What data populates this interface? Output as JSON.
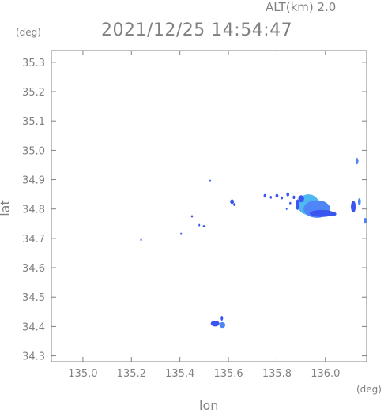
{
  "header": {
    "altitude_label": "ALT(km) 2.0",
    "timestamp": "2021/12/25 14:54:47"
  },
  "chart_data": {
    "type": "heatmap",
    "title": "2021/12/25 14:54:47",
    "xlabel": "lon",
    "ylabel": "lat",
    "x_unit": "(deg)",
    "y_unit": "(deg)",
    "xlim": [
      134.87,
      136.17
    ],
    "ylim": [
      34.28,
      35.34
    ],
    "x_ticks": [
      {
        "value": 135.0,
        "label": "135.0"
      },
      {
        "value": 135.2,
        "label": "135.2"
      },
      {
        "value": 135.4,
        "label": "135.4"
      },
      {
        "value": 135.6,
        "label": "135.6"
      },
      {
        "value": 135.8,
        "label": "135.8"
      },
      {
        "value": 136.0,
        "label": "136.0"
      }
    ],
    "y_ticks": [
      {
        "value": 34.3,
        "label": "34.3"
      },
      {
        "value": 34.4,
        "label": "34.4"
      },
      {
        "value": 34.5,
        "label": "34.5"
      },
      {
        "value": 34.6,
        "label": "34.6"
      },
      {
        "value": 34.7,
        "label": "34.7"
      },
      {
        "value": 34.8,
        "label": "34.8"
      },
      {
        "value": 34.9,
        "label": "34.9"
      },
      {
        "value": 35.0,
        "label": "35.0"
      },
      {
        "value": 35.1,
        "label": "35.1"
      },
      {
        "value": 35.2,
        "label": "35.2"
      },
      {
        "value": 35.3,
        "label": "35.3"
      }
    ],
    "grid": false,
    "colors": {
      "axis": "#808080",
      "echo_low": "#3a55f0",
      "echo_mid": "#4f86f7",
      "echo_high": "#4fb8f0"
    },
    "echo_cells": [
      {
        "lon": 135.93,
        "lat": 34.815,
        "rx": 0.045,
        "ry": 0.035,
        "level": "high"
      },
      {
        "lon": 135.965,
        "lat": 34.8,
        "rx": 0.055,
        "ry": 0.03,
        "level": "mid"
      },
      {
        "lon": 135.985,
        "lat": 34.785,
        "rx": 0.05,
        "ry": 0.012,
        "level": "low"
      },
      {
        "lon": 136.03,
        "lat": 34.783,
        "rx": 0.015,
        "ry": 0.008,
        "level": "low"
      },
      {
        "lon": 135.9,
        "lat": 34.835,
        "rx": 0.012,
        "ry": 0.012,
        "level": "low"
      },
      {
        "lon": 135.885,
        "lat": 34.815,
        "rx": 0.008,
        "ry": 0.018,
        "level": "low"
      },
      {
        "lon": 136.115,
        "lat": 34.808,
        "rx": 0.01,
        "ry": 0.02,
        "level": "low"
      },
      {
        "lon": 136.14,
        "lat": 34.825,
        "rx": 0.006,
        "ry": 0.012,
        "level": "mid"
      },
      {
        "lon": 136.13,
        "lat": 34.963,
        "rx": 0.006,
        "ry": 0.011,
        "level": "mid"
      },
      {
        "lon": 136.168,
        "lat": 34.76,
        "rx": 0.006,
        "ry": 0.01,
        "level": "mid"
      },
      {
        "lon": 135.615,
        "lat": 34.825,
        "rx": 0.008,
        "ry": 0.008,
        "level": "low"
      },
      {
        "lon": 135.625,
        "lat": 34.815,
        "rx": 0.005,
        "ry": 0.005,
        "level": "low"
      },
      {
        "lon": 135.5,
        "lat": 34.742,
        "rx": 0.006,
        "ry": 0.003,
        "level": "low"
      },
      {
        "lon": 135.48,
        "lat": 34.745,
        "rx": 0.003,
        "ry": 0.004,
        "level": "low"
      },
      {
        "lon": 135.45,
        "lat": 34.775,
        "rx": 0.004,
        "ry": 0.004,
        "level": "low"
      },
      {
        "lon": 135.24,
        "lat": 34.695,
        "rx": 0.003,
        "ry": 0.004,
        "level": "low"
      },
      {
        "lon": 135.405,
        "lat": 34.717,
        "rx": 0.002,
        "ry": 0.002,
        "level": "low"
      },
      {
        "lon": 135.525,
        "lat": 34.897,
        "rx": 0.002,
        "ry": 0.002,
        "level": "low"
      },
      {
        "lon": 135.545,
        "lat": 34.41,
        "rx": 0.018,
        "ry": 0.01,
        "level": "low"
      },
      {
        "lon": 135.575,
        "lat": 34.405,
        "rx": 0.012,
        "ry": 0.01,
        "level": "mid"
      },
      {
        "lon": 135.573,
        "lat": 34.428,
        "rx": 0.005,
        "ry": 0.008,
        "level": "low"
      },
      {
        "lon": 135.75,
        "lat": 34.845,
        "rx": 0.005,
        "ry": 0.006,
        "level": "low"
      },
      {
        "lon": 135.775,
        "lat": 34.84,
        "rx": 0.004,
        "ry": 0.005,
        "level": "low"
      },
      {
        "lon": 135.8,
        "lat": 34.845,
        "rx": 0.006,
        "ry": 0.006,
        "level": "low"
      },
      {
        "lon": 135.82,
        "lat": 34.838,
        "rx": 0.005,
        "ry": 0.005,
        "level": "low"
      },
      {
        "lon": 135.845,
        "lat": 34.85,
        "rx": 0.006,
        "ry": 0.007,
        "level": "low"
      },
      {
        "lon": 135.855,
        "lat": 34.82,
        "rx": 0.004,
        "ry": 0.004,
        "level": "low"
      },
      {
        "lon": 135.87,
        "lat": 34.84,
        "rx": 0.005,
        "ry": 0.006,
        "level": "low"
      },
      {
        "lon": 135.84,
        "lat": 34.8,
        "rx": 0.003,
        "ry": 0.003,
        "level": "low"
      }
    ]
  }
}
